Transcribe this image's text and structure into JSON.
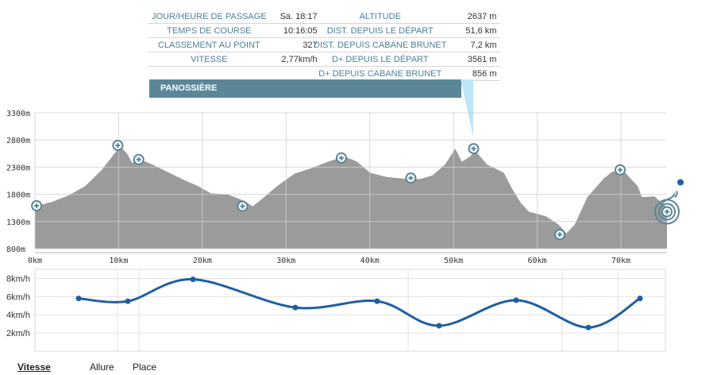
{
  "info_left": [
    {
      "label": "JOUR/HEURE DE PASSAGE",
      "value": "Sa. 18:17"
    },
    {
      "label": "TEMPS DE COURSE",
      "value": "10:16:05"
    },
    {
      "label": "CLASSEMENT AU POINT",
      "value": "327"
    },
    {
      "label": "VITESSE",
      "value": "2,77km/h"
    }
  ],
  "info_right": [
    {
      "label": "ALTITUDE",
      "value": "2637 m"
    },
    {
      "label": "DIST. DEPUIS LE DÉPART",
      "value": "51,6 km"
    },
    {
      "label": "DIST. DEPUIS CABANE BRUNET",
      "value": "7,2 km"
    },
    {
      "label": "D+ DEPUIS LE DÉPART",
      "value": "3561 m"
    },
    {
      "label": "D+ DEPUIS CABANE BRUNET",
      "value": "856 m"
    }
  ],
  "checkpoint_name": "PANOSSIÈRE",
  "colors": {
    "profile_fill": "#9b9b9b",
    "table_label": "#4f7f97",
    "banner": "#5b8698",
    "pointer": "#bde5f7",
    "speed_line": "#1f5fa0",
    "marker_ring": "#5b8698"
  },
  "elevation_chart": {
    "type": "area",
    "y_ticks": [
      "3300m",
      "2800m",
      "2300m",
      "1800m",
      "1300m",
      "800m"
    ],
    "y_tick_values": [
      3300,
      2800,
      2300,
      1800,
      1300,
      800
    ],
    "ylim": [
      800,
      3300
    ],
    "x_ticks": [
      "0km",
      "10km",
      "20km",
      "30km",
      "40km",
      "50km",
      "60km",
      "70km"
    ],
    "x_tick_values": [
      0,
      10,
      20,
      30,
      40,
      50,
      60,
      70
    ],
    "xlim": [
      0,
      75.5
    ],
    "profile": [
      [
        0,
        1580
      ],
      [
        2,
        1660
      ],
      [
        4,
        1780
      ],
      [
        6,
        1950
      ],
      [
        8,
        2250
      ],
      [
        9.5,
        2550
      ],
      [
        10.2,
        2680
      ],
      [
        11,
        2550
      ],
      [
        11.6,
        2380
      ],
      [
        12.5,
        2450
      ],
      [
        14,
        2350
      ],
      [
        16,
        2200
      ],
      [
        18,
        2050
      ],
      [
        19.5,
        1950
      ],
      [
        21,
        1820
      ],
      [
        23,
        1800
      ],
      [
        25,
        1680
      ],
      [
        26,
        1580
      ],
      [
        27,
        1700
      ],
      [
        29,
        1960
      ],
      [
        31,
        2180
      ],
      [
        33,
        2280
      ],
      [
        35,
        2400
      ],
      [
        37,
        2500
      ],
      [
        38.5,
        2400
      ],
      [
        40,
        2200
      ],
      [
        42,
        2120
      ],
      [
        44,
        2090
      ],
      [
        46,
        2080
      ],
      [
        47.5,
        2150
      ],
      [
        49,
        2350
      ],
      [
        50.2,
        2640
      ],
      [
        51,
        2400
      ],
      [
        52,
        2500
      ],
      [
        52.6,
        2600
      ],
      [
        54,
        2350
      ],
      [
        56,
        2200
      ],
      [
        57,
        1900
      ],
      [
        58,
        1650
      ],
      [
        59,
        1480
      ],
      [
        61,
        1400
      ],
      [
        62.5,
        1250
      ],
      [
        63.5,
        1080
      ],
      [
        64.5,
        1250
      ],
      [
        66,
        1750
      ],
      [
        68,
        2100
      ],
      [
        69,
        2220
      ],
      [
        70.5,
        2200
      ],
      [
        72,
        1950
      ],
      [
        72.5,
        1750
      ],
      [
        74,
        1760
      ],
      [
        75.5,
        1560
      ]
    ],
    "markers": [
      [
        0.2,
        1590
      ],
      [
        9.9,
        2700
      ],
      [
        12.4,
        2440
      ],
      [
        24.8,
        1580
      ],
      [
        36.6,
        2470
      ],
      [
        44.9,
        2100
      ],
      [
        52.4,
        2640
      ],
      [
        62.7,
        1060
      ],
      [
        69.9,
        2250
      ]
    ],
    "finish_marker": [
      75.5,
      1480
    ]
  },
  "chart_data": {
    "type": "line",
    "y_ticks": [
      "8km/h",
      "6km/h",
      "4km/h",
      "2km/h"
    ],
    "y_tick_values": [
      8,
      6,
      4,
      2
    ],
    "ylim": [
      0,
      9
    ],
    "points": [
      [
        0,
        5.8
      ],
      [
        1,
        5.5
      ],
      [
        2,
        7.9
      ],
      [
        3,
        4.8
      ],
      [
        4,
        5.5
      ],
      [
        5,
        2.8
      ],
      [
        6,
        5.6
      ],
      [
        7,
        2.6
      ],
      [
        8,
        5.8
      ]
    ]
  },
  "tabs": [
    "Vitesse",
    "Allure",
    "Place"
  ]
}
